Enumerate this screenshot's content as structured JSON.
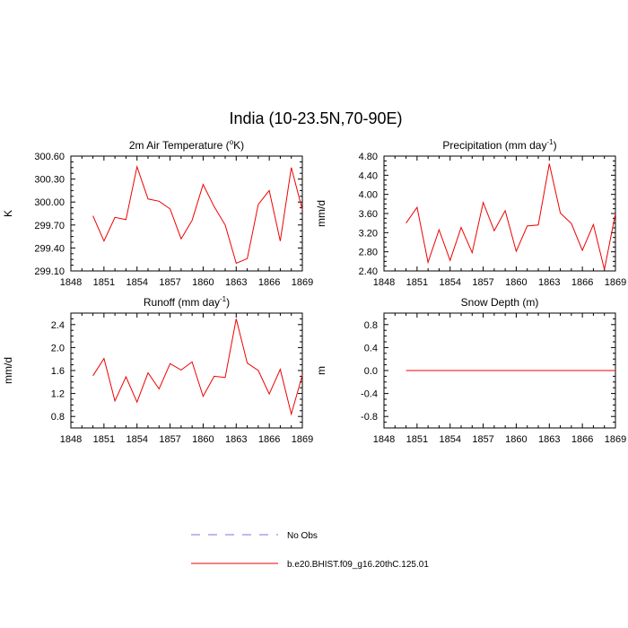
{
  "title": "India (10-23.5N,70-90E)",
  "legend": {
    "items": [
      {
        "label": "No Obs",
        "color": "#7777ee",
        "dash": true
      },
      {
        "label": "b.e20.BHIST.f09_g16.20thC.125.01",
        "color": "#ee0000",
        "dash": false
      }
    ]
  },
  "chart_data": [
    {
      "type": "line",
      "title_main": "2m Air Temperature (",
      "title_sup": "o",
      "title_rest": "K)",
      "ylabel": "K",
      "xlim": [
        1848,
        1869
      ],
      "ylim": [
        299.1,
        300.6
      ],
      "xticks": [
        "1848",
        "1851",
        "1854",
        "1857",
        "1860",
        "1863",
        "1866",
        "1869"
      ],
      "yticks": [
        "299.10",
        "299.40",
        "299.70",
        "300.00",
        "300.30",
        "300.60"
      ],
      "x": [
        1850,
        1851,
        1852,
        1853,
        1854,
        1855,
        1856,
        1857,
        1858,
        1859,
        1860,
        1861,
        1862,
        1863,
        1864,
        1865,
        1866,
        1867,
        1868,
        1869
      ],
      "series": [
        {
          "color": "#ee0000",
          "values": [
            299.82,
            299.49,
            299.8,
            299.77,
            300.46,
            300.04,
            300.01,
            299.91,
            299.52,
            299.76,
            300.23,
            299.94,
            299.7,
            299.2,
            299.26,
            299.97,
            300.15,
            299.49,
            300.45,
            299.9
          ]
        }
      ]
    },
    {
      "type": "line",
      "title_main": "Precipitation (mm day",
      "title_sup": "-1",
      "title_rest": ")",
      "ylabel": "mm/d",
      "xlim": [
        1848,
        1869
      ],
      "ylim": [
        2.4,
        4.8
      ],
      "xticks": [
        "1848",
        "1851",
        "1854",
        "1857",
        "1860",
        "1863",
        "1866",
        "1869"
      ],
      "yticks": [
        "2.40",
        "2.80",
        "3.20",
        "3.60",
        "4.00",
        "4.40",
        "4.80"
      ],
      "x": [
        1850,
        1851,
        1852,
        1853,
        1854,
        1855,
        1856,
        1857,
        1858,
        1859,
        1860,
        1861,
        1862,
        1863,
        1864,
        1865,
        1866,
        1867,
        1868,
        1869
      ],
      "series": [
        {
          "color": "#ee0000",
          "values": [
            3.4,
            3.73,
            2.58,
            3.26,
            2.62,
            3.31,
            2.78,
            3.83,
            3.24,
            3.66,
            2.81,
            3.34,
            3.36,
            4.64,
            3.61,
            3.39,
            2.83,
            3.37,
            2.43,
            3.6
          ]
        }
      ]
    },
    {
      "type": "line",
      "title_main": "Runoff (mm day",
      "title_sup": "-1",
      "title_rest": ")",
      "ylabel": "mm/d",
      "xlim": [
        1848,
        1869
      ],
      "ylim": [
        0.6,
        2.6
      ],
      "xticks": [
        "1848",
        "1851",
        "1854",
        "1857",
        "1860",
        "1863",
        "1866",
        "1869"
      ],
      "yticks": [
        "0.8",
        "1.2",
        "1.6",
        "2.0",
        "2.4"
      ],
      "x": [
        1850,
        1851,
        1852,
        1853,
        1854,
        1855,
        1856,
        1857,
        1858,
        1859,
        1860,
        1861,
        1862,
        1863,
        1864,
        1865,
        1866,
        1867,
        1868,
        1869
      ],
      "series": [
        {
          "color": "#ee0000",
          "values": [
            1.51,
            1.81,
            1.07,
            1.49,
            1.05,
            1.56,
            1.28,
            1.72,
            1.61,
            1.75,
            1.15,
            1.5,
            1.48,
            2.5,
            1.73,
            1.6,
            1.19,
            1.62,
            0.84,
            1.52
          ]
        }
      ]
    },
    {
      "type": "line",
      "title_main": "Snow Depth (m)",
      "title_sup": "",
      "title_rest": "",
      "ylabel": "m",
      "xlim": [
        1848,
        1869
      ],
      "ylim": [
        -1.0,
        1.0
      ],
      "xticks": [
        "1848",
        "1851",
        "1854",
        "1857",
        "1860",
        "1863",
        "1866",
        "1869"
      ],
      "yticks": [
        "-0.8",
        "-0.4",
        "0.0",
        "0.4",
        "0.8"
      ],
      "x": [
        1850,
        1851,
        1852,
        1853,
        1854,
        1855,
        1856,
        1857,
        1858,
        1859,
        1860,
        1861,
        1862,
        1863,
        1864,
        1865,
        1866,
        1867,
        1868,
        1869
      ],
      "series": [
        {
          "color": "#ee0000",
          "values": [
            0,
            0,
            0,
            0,
            0,
            0,
            0,
            0,
            0,
            0,
            0,
            0,
            0,
            0,
            0,
            0,
            0,
            0,
            0,
            0
          ]
        }
      ]
    }
  ]
}
